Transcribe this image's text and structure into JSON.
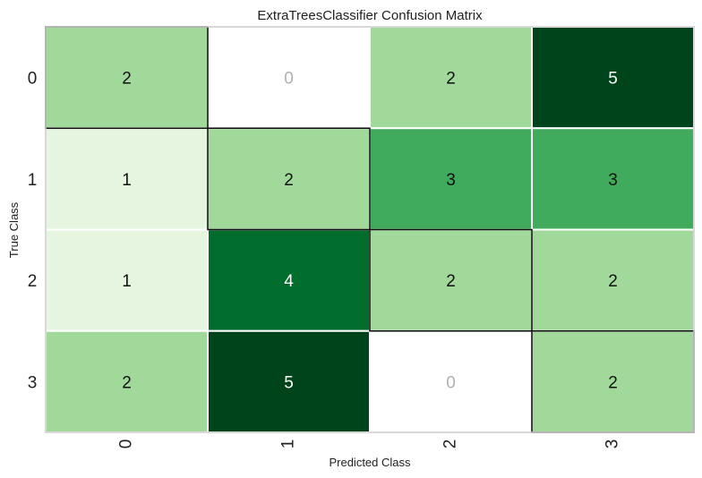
{
  "chart_data": {
    "type": "heatmap",
    "title": "ExtraTreesClassifier Confusion Matrix",
    "xlabel": "Predicted Class",
    "ylabel": "True Class",
    "x_categories": [
      "0",
      "1",
      "2",
      "3"
    ],
    "y_categories": [
      "0",
      "1",
      "2",
      "3"
    ],
    "values": [
      [
        2,
        0,
        2,
        5
      ],
      [
        1,
        2,
        3,
        3
      ],
      [
        1,
        4,
        2,
        2
      ],
      [
        2,
        5,
        0,
        2
      ]
    ],
    "highlighted_diagonal": true,
    "colormap": "Greens",
    "value_range": [
      0,
      5
    ],
    "cell_colors": {
      "0": "#ffffff",
      "1": "#e5f5e0",
      "2": "#a1d99b",
      "3": "#41ab5d",
      "4": "#006d2c",
      "5": "#00441b"
    },
    "zero_text_color": "#b0b0b0",
    "light_text_color": "#ffffff",
    "dark_text_color": "#111111"
  }
}
